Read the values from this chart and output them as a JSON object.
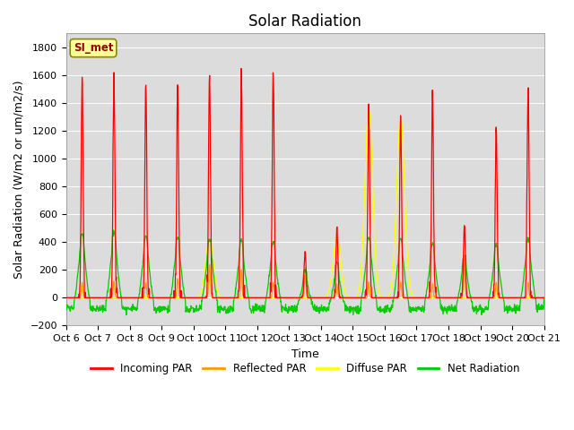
{
  "title": "Solar Radiation",
  "ylabel": "Solar Radiation (W/m2 or um/m2/s)",
  "xlabel": "Time",
  "ylim": [
    -200,
    1900
  ],
  "yticks": [
    -200,
    0,
    200,
    400,
    600,
    800,
    1000,
    1200,
    1400,
    1600,
    1800
  ],
  "xtick_labels": [
    "Oct 6",
    "Oct 7",
    "Oct 8",
    "Oct 9",
    "Oct 10",
    "Oct 11",
    "Oct 12",
    "Oct 13",
    "Oct 14",
    "Oct 15",
    "Oct 16",
    "Oct 17",
    "Oct 18",
    "Oct 19",
    "Oct 20",
    "Oct 21"
  ],
  "colors": {
    "incoming": "#ff0000",
    "reflected": "#ff9900",
    "diffuse": "#ffff00",
    "net": "#00cc00"
  },
  "legend_labels": [
    "Incoming PAR",
    "Reflected PAR",
    "Diffuse PAR",
    "Net Radiation"
  ],
  "watermark": "SI_met",
  "bg_color": "#dcdcdc",
  "title_fontsize": 12,
  "label_fontsize": 9,
  "tick_fontsize": 8,
  "day_configs": [
    {
      "inc": 1570,
      "refl": 110,
      "diff": 0,
      "net_pk": 460
    },
    {
      "inc": 1590,
      "refl": 120,
      "diff": 0,
      "net_pk": 470
    },
    {
      "inc": 1530,
      "refl": 110,
      "diff": 0,
      "net_pk": 440
    },
    {
      "inc": 1520,
      "refl": 130,
      "diff": 0,
      "net_pk": 430
    },
    {
      "inc": 1590,
      "refl": 240,
      "diff": 420,
      "net_pk": 420
    },
    {
      "inc": 1640,
      "refl": 200,
      "diff": 0,
      "net_pk": 410
    },
    {
      "inc": 1640,
      "refl": 110,
      "diff": 0,
      "net_pk": 400
    },
    {
      "inc": 340,
      "refl": 170,
      "diff": 0,
      "net_pk": 200
    },
    {
      "inc": 510,
      "refl": 100,
      "diff": 430,
      "net_pk": 250
    },
    {
      "inc": 1350,
      "refl": 110,
      "diff": 1350,
      "net_pk": 430
    },
    {
      "inc": 1310,
      "refl": 110,
      "diff": 1300,
      "net_pk": 420
    },
    {
      "inc": 1480,
      "refl": 100,
      "diff": 0,
      "net_pk": 390
    },
    {
      "inc": 540,
      "refl": 300,
      "diff": 0,
      "net_pk": 300
    },
    {
      "inc": 1240,
      "refl": 110,
      "diff": 0,
      "net_pk": 380
    },
    {
      "inc": 1550,
      "refl": 110,
      "diff": 0,
      "net_pk": 430
    }
  ]
}
